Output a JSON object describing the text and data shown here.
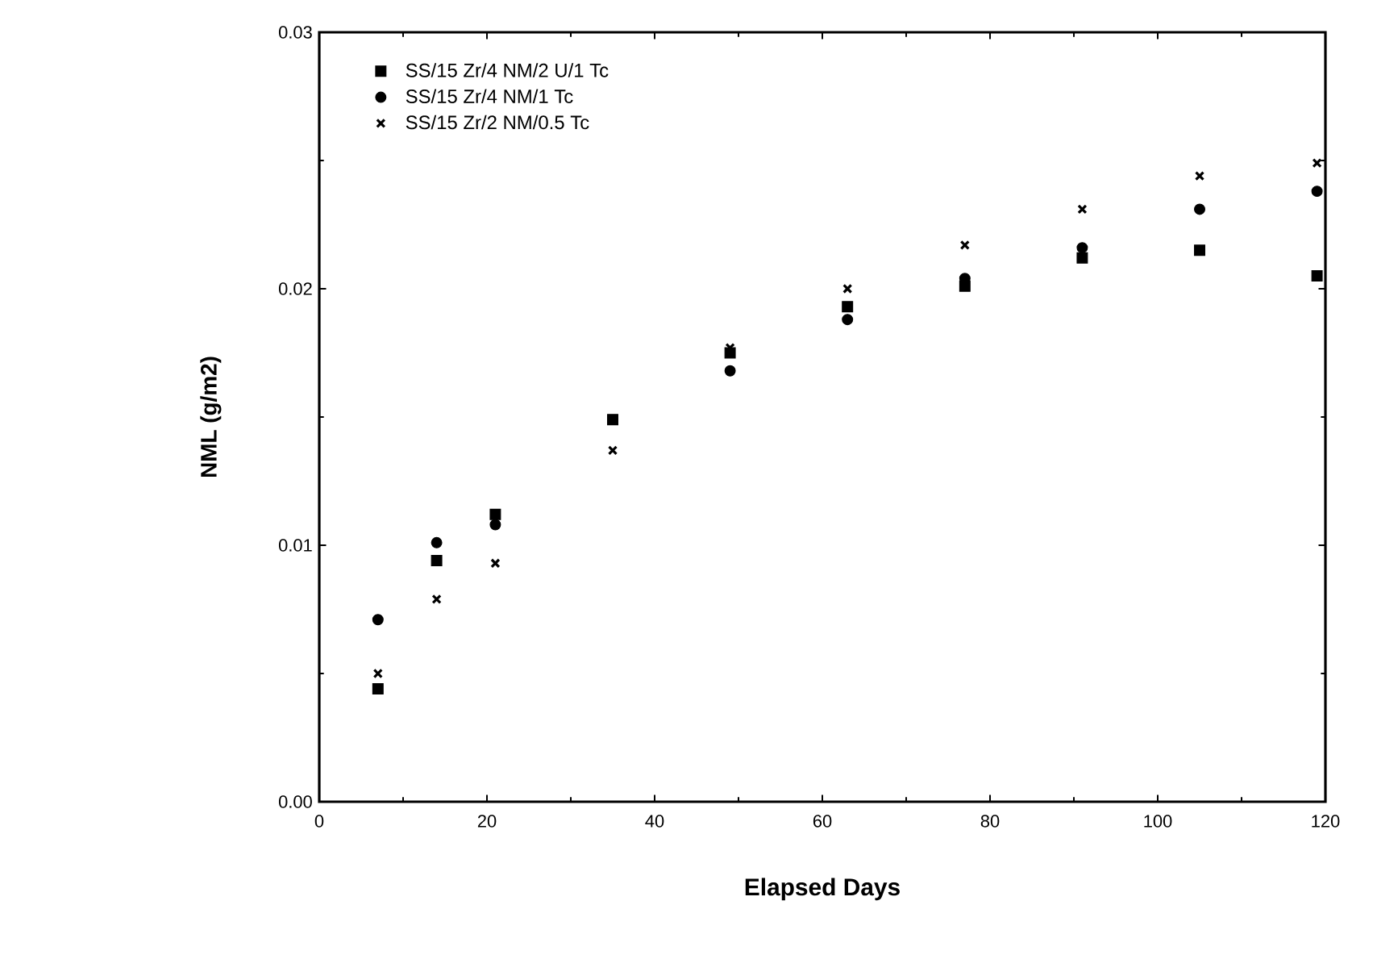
{
  "chart_data": {
    "type": "scatter",
    "xlabel": "Elapsed  Days",
    "ylabel": "NML  (g/m2)",
    "x": [
      7,
      14,
      21,
      35,
      49,
      63,
      77,
      91,
      105,
      119
    ],
    "series": [
      {
        "name": "SS/15 Zr/4 NM/2 U/1 Tc",
        "color": "#000000",
        "marker": "square",
        "values": [
          0.0044,
          0.0094,
          0.0112,
          0.0149,
          0.0175,
          0.0193,
          0.0201,
          0.0212,
          0.0215,
          0.0205
        ]
      },
      {
        "name": "SS/15 Zr/4 NM/1 Tc",
        "color": "#000000",
        "marker": "circle",
        "values": [
          0.0071,
          0.0101,
          0.0108,
          null,
          0.0168,
          0.0188,
          0.0204,
          0.0216,
          0.0231,
          0.0238
        ]
      },
      {
        "name": "SS/15 Zr/2 NM/0.5 Tc",
        "color": "#000000",
        "marker": "cross",
        "values": [
          0.005,
          0.0079,
          0.0093,
          0.0137,
          0.0177,
          0.02,
          0.0217,
          0.0231,
          0.0244,
          0.0249
        ]
      }
    ],
    "xlim": [
      0,
      120
    ],
    "ylim": [
      0,
      0.03
    ],
    "xticks": [
      0,
      20,
      40,
      60,
      80,
      100,
      120
    ],
    "yticks": [
      {
        "value": 0,
        "label": "0.00"
      },
      {
        "value": 0.01,
        "label": "0.01"
      },
      {
        "value": 0.02,
        "label": "0.02"
      },
      {
        "value": 0.03,
        "label": "0.03"
      }
    ],
    "grid": false,
    "legend": "top left"
  }
}
